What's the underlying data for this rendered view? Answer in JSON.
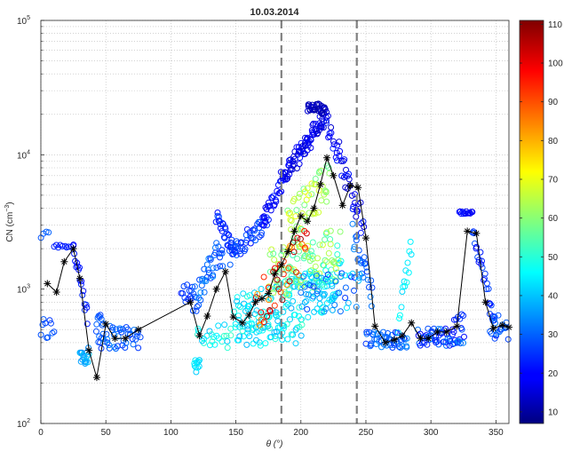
{
  "chart_data": {
    "type": "scatter",
    "title": "10.03.2014",
    "xlabel": "θ (°)",
    "ylabel_base": "CN (cm",
    "ylabel_exp": "−3",
    "ylabel_close": ")",
    "xlim": [
      0,
      360
    ],
    "ylim": [
      100,
      100000
    ],
    "yscale": "log",
    "grid": true,
    "x_ticks": [
      0,
      50,
      100,
      150,
      200,
      250,
      300,
      350
    ],
    "y_ticks": [
      {
        "value": 100,
        "base": "10",
        "exp": "2"
      },
      {
        "value": 1000,
        "base": "10",
        "exp": "3"
      },
      {
        "value": 10000,
        "base": "10",
        "exp": "4"
      },
      {
        "value": 100000,
        "base": "10",
        "exp": "5"
      }
    ],
    "vertical_lines_x": [
      185,
      243
    ],
    "colorbar": {
      "min": 7,
      "max": 111,
      "colormap": "jet",
      "ticks": [
        10,
        20,
        30,
        40,
        50,
        60,
        70,
        80,
        90,
        100,
        110
      ]
    },
    "median_line": {
      "color": "#000000",
      "marker": "asterisk",
      "points": [
        [
          5,
          1100
        ],
        [
          12,
          950
        ],
        [
          18,
          1600
        ],
        [
          25,
          2000
        ],
        [
          30,
          1200
        ],
        [
          37,
          350
        ],
        [
          43,
          220
        ],
        [
          50,
          550
        ],
        [
          57,
          430
        ],
        [
          65,
          430
        ],
        [
          75,
          500
        ],
        [
          115,
          800
        ],
        [
          122,
          450
        ],
        [
          128,
          630
        ],
        [
          135,
          1000
        ],
        [
          142,
          1350
        ],
        [
          148,
          620
        ],
        [
          155,
          560
        ],
        [
          160,
          640
        ],
        [
          165,
          800
        ],
        [
          170,
          850
        ],
        [
          175,
          930
        ],
        [
          180,
          1300
        ],
        [
          185,
          1500
        ],
        [
          190,
          1900
        ],
        [
          195,
          2700
        ],
        [
          200,
          3500
        ],
        [
          205,
          3200
        ],
        [
          210,
          4000
        ],
        [
          215,
          6000
        ],
        [
          220,
          9500
        ],
        [
          225,
          7000
        ],
        [
          232,
          4200
        ],
        [
          238,
          5900
        ],
        [
          244,
          5700
        ],
        [
          250,
          2400
        ],
        [
          257,
          530
        ],
        [
          265,
          400
        ],
        [
          272,
          420
        ],
        [
          278,
          450
        ],
        [
          285,
          560
        ],
        [
          292,
          430
        ],
        [
          298,
          430
        ],
        [
          305,
          480
        ],
        [
          312,
          480
        ],
        [
          320,
          530
        ],
        [
          328,
          2700
        ],
        [
          335,
          2600
        ],
        [
          342,
          800
        ],
        [
          348,
          510
        ],
        [
          355,
          540
        ],
        [
          360,
          520
        ]
      ]
    },
    "scatter_clusters": [
      {
        "x0": 0,
        "x1": 10,
        "n": 10,
        "kind": "const",
        "a": 500,
        "spread": 0.2,
        "c0": 25,
        "c1": 30
      },
      {
        "x0": 0,
        "x1": 6,
        "n": 4,
        "kind": "const",
        "a": 2700,
        "spread": 0.15,
        "c0": 28,
        "c1": 30
      },
      {
        "x0": 10,
        "x1": 25,
        "n": 10,
        "kind": "const",
        "a": 2100,
        "spread": 0.03,
        "c0": 22,
        "c1": 24
      },
      {
        "x0": 25,
        "x1": 36,
        "n": 18,
        "kind": "lin",
        "a": 2000,
        "b": 600,
        "spread": 0.15,
        "c0": 20,
        "c1": 25
      },
      {
        "x0": 30,
        "x1": 37,
        "n": 18,
        "kind": "const",
        "a": 320,
        "spread": 0.12,
        "c0": 32,
        "c1": 40
      },
      {
        "x0": 43,
        "x1": 76,
        "n": 45,
        "kind": "const",
        "a": 440,
        "spread": 0.18,
        "c0": 24,
        "c1": 34
      },
      {
        "x0": 43,
        "x1": 48,
        "n": 8,
        "kind": "const",
        "a": 600,
        "spread": 0.1,
        "c0": 24,
        "c1": 30
      },
      {
        "x0": 108,
        "x1": 116,
        "n": 10,
        "kind": "const",
        "a": 950,
        "spread": 0.15,
        "c0": 22,
        "c1": 28
      },
      {
        "x0": 116,
        "x1": 140,
        "n": 45,
        "kind": "lin",
        "a": 800,
        "b": 2000,
        "spread": 0.25,
        "c0": 25,
        "c1": 35
      },
      {
        "x0": 135,
        "x1": 150,
        "n": 30,
        "kind": "lin",
        "a": 3500,
        "b": 1800,
        "spread": 0.12,
        "c0": 20,
        "c1": 28
      },
      {
        "x0": 145,
        "x1": 175,
        "n": 45,
        "kind": "lin",
        "a": 1800,
        "b": 3300,
        "spread": 0.15,
        "c0": 20,
        "c1": 30
      },
      {
        "x0": 170,
        "x1": 185,
        "n": 25,
        "kind": "lin",
        "a": 3200,
        "b": 6000,
        "spread": 0.12,
        "c0": 18,
        "c1": 24
      },
      {
        "x0": 185,
        "x1": 220,
        "n": 90,
        "kind": "lin",
        "a": 6500,
        "b": 20000,
        "spread": 0.15,
        "c0": 14,
        "c1": 22
      },
      {
        "x0": 205,
        "x1": 218,
        "n": 30,
        "kind": "const",
        "a": 22000,
        "spread": 0.08,
        "c0": 10,
        "c1": 16
      },
      {
        "x0": 220,
        "x1": 248,
        "n": 45,
        "kind": "lin",
        "a": 18000,
        "b": 3000,
        "spread": 0.2,
        "c0": 14,
        "c1": 24
      },
      {
        "x0": 240,
        "x1": 255,
        "n": 25,
        "kind": "lin",
        "a": 2500,
        "b": 900,
        "spread": 0.2,
        "c0": 26,
        "c1": 34
      },
      {
        "x0": 118,
        "x1": 122,
        "n": 12,
        "kind": "const",
        "a": 270,
        "spread": 0.1,
        "c0": 40,
        "c1": 46
      },
      {
        "x0": 150,
        "x1": 230,
        "n": 130,
        "kind": "lin",
        "a": 600,
        "b": 1100,
        "spread": 0.35,
        "c0": 38,
        "c1": 50
      },
      {
        "x0": 175,
        "x1": 230,
        "n": 100,
        "kind": "lin",
        "a": 1300,
        "b": 1800,
        "spread": 0.4,
        "c0": 50,
        "c1": 68
      },
      {
        "x0": 190,
        "x1": 222,
        "n": 50,
        "kind": "lin",
        "a": 3000,
        "b": 6500,
        "spread": 0.3,
        "c0": 55,
        "c1": 70
      },
      {
        "x0": 165,
        "x1": 205,
        "n": 40,
        "kind": "lin",
        "a": 700,
        "b": 2000,
        "spread": 0.35,
        "c0": 80,
        "c1": 110
      },
      {
        "x0": 120,
        "x1": 200,
        "n": 70,
        "kind": "const",
        "a": 450,
        "spread": 0.18,
        "c0": 38,
        "c1": 52
      },
      {
        "x0": 200,
        "x1": 245,
        "n": 50,
        "kind": "const",
        "a": 950,
        "spread": 0.3,
        "c0": 25,
        "c1": 45
      },
      {
        "x0": 250,
        "x1": 282,
        "n": 50,
        "kind": "const",
        "a": 420,
        "spread": 0.12,
        "c0": 25,
        "c1": 35
      },
      {
        "x0": 275,
        "x1": 285,
        "n": 15,
        "kind": "lin",
        "a": 500,
        "b": 2200,
        "spread": 0.2,
        "c0": 40,
        "c1": 48
      },
      {
        "x0": 290,
        "x1": 325,
        "n": 60,
        "kind": "const",
        "a": 440,
        "spread": 0.14,
        "c0": 20,
        "c1": 34
      },
      {
        "x0": 318,
        "x1": 325,
        "n": 6,
        "kind": "const",
        "a": 620,
        "spread": 0.05,
        "c0": 22,
        "c1": 26
      },
      {
        "x0": 322,
        "x1": 332,
        "n": 14,
        "kind": "const",
        "a": 3700,
        "spread": 0.02,
        "c0": 18,
        "c1": 22
      },
      {
        "x0": 332,
        "x1": 350,
        "n": 28,
        "kind": "lin",
        "a": 3000,
        "b": 500,
        "spread": 0.15,
        "c0": 20,
        "c1": 28
      },
      {
        "x0": 345,
        "x1": 360,
        "n": 20,
        "kind": "const",
        "a": 520,
        "spread": 0.2,
        "c0": 24,
        "c1": 32
      }
    ]
  }
}
